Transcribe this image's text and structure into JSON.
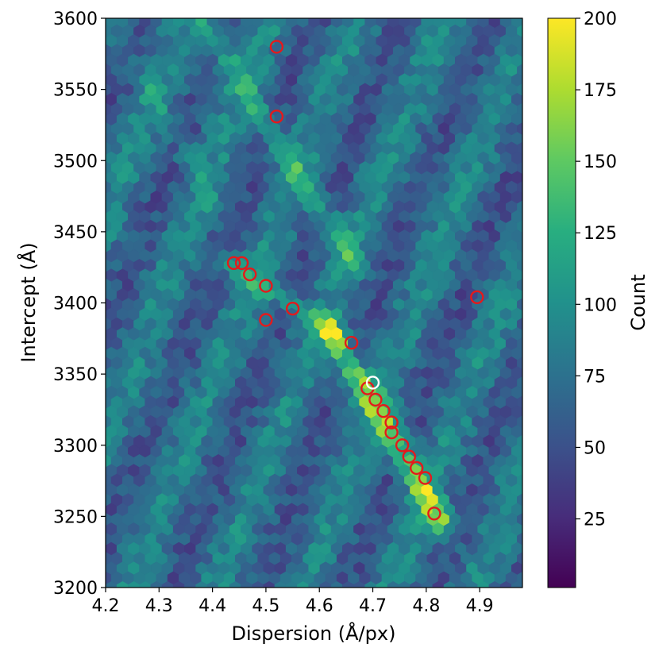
{
  "chart_data": {
    "type": "heatmap",
    "subtype": "hexbin",
    "xlabel": "Dispersion (Å/px)",
    "ylabel": "Intercept (Å)",
    "xlim": [
      4.2,
      4.98
    ],
    "ylim": [
      3200,
      3600
    ],
    "xticks": [
      "4.2",
      "4.3",
      "4.4",
      "4.5",
      "4.6",
      "4.7",
      "4.8",
      "4.9"
    ],
    "yticks": [
      "3200",
      "3250",
      "3300",
      "3350",
      "3400",
      "3450",
      "3500",
      "3550",
      "3600"
    ],
    "colorbar": {
      "label": "Count",
      "range": [
        1,
        200
      ],
      "ticks": [
        "25",
        "50",
        "75",
        "100",
        "125",
        "150",
        "175",
        "200"
      ],
      "colormap": "viridis"
    },
    "grid": false,
    "ridges": [
      {
        "from": [
          4.43,
          3430
        ],
        "to": [
          4.62,
          3380
        ],
        "peak": 110
      },
      {
        "from": [
          4.62,
          3380
        ],
        "to": [
          4.83,
          3245
        ],
        "peak": 165
      },
      {
        "from": [
          4.38,
          3600
        ],
        "to": [
          4.66,
          3430
        ],
        "peak": 115
      },
      {
        "from": [
          4.25,
          3570
        ],
        "to": [
          4.4,
          3470
        ],
        "peak": 90
      }
    ],
    "series": [
      {
        "marker": "circle-open",
        "color": "#e41a1c",
        "points": [
          [
            4.52,
            3580
          ],
          [
            4.52,
            3531
          ],
          [
            4.44,
            3428
          ],
          [
            4.455,
            3428
          ],
          [
            4.47,
            3420
          ],
          [
            4.5,
            3412
          ],
          [
            4.55,
            3396
          ],
          [
            4.5,
            3388
          ],
          [
            4.895,
            3404
          ],
          [
            4.66,
            3372
          ],
          [
            4.69,
            3340
          ],
          [
            4.705,
            3332
          ],
          [
            4.72,
            3324
          ],
          [
            4.735,
            3316
          ],
          [
            4.735,
            3309
          ],
          [
            4.755,
            3300
          ],
          [
            4.768,
            3292
          ],
          [
            4.782,
            3284
          ],
          [
            4.798,
            3277
          ],
          [
            4.815,
            3252
          ]
        ]
      },
      {
        "marker": "circle-open",
        "color": "#ffffff",
        "points": [
          [
            4.7,
            3344
          ]
        ]
      }
    ]
  }
}
